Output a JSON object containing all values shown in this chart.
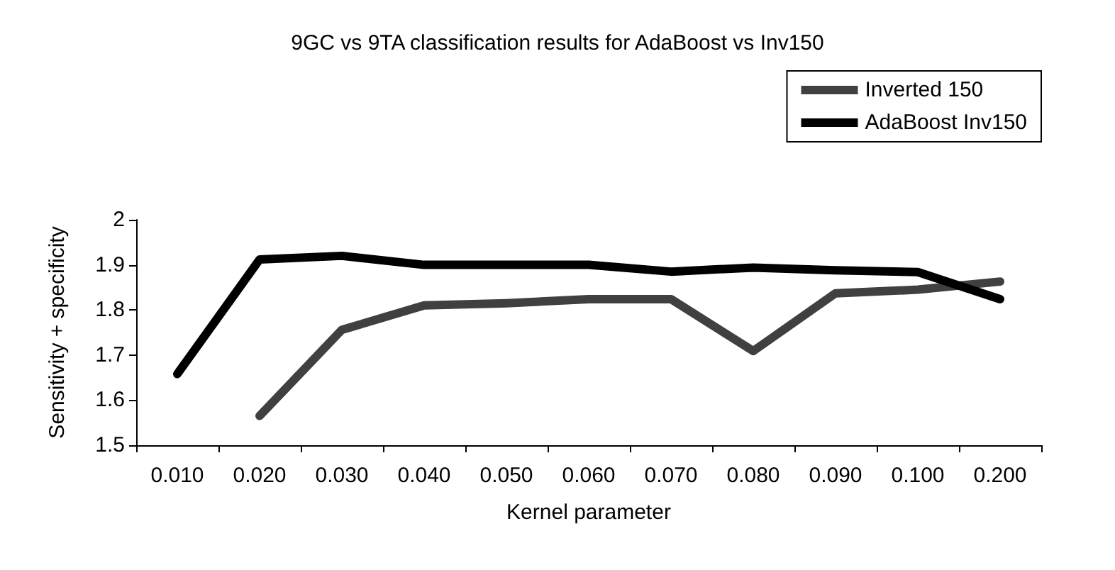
{
  "chart_data": {
    "type": "line",
    "title": "9GC vs 9TA classification results for AdaBoost vs Inv150",
    "xlabel": "Kernel parameter",
    "ylabel": "Sensitivity + specificity",
    "categories": [
      "0.010",
      "0.020",
      "0.030",
      "0.040",
      "0.050",
      "0.060",
      "0.070",
      "0.080",
      "0.090",
      "0.100",
      "0.200"
    ],
    "series": [
      {
        "name": "Inverted 150",
        "color": "#404040",
        "values": [
          null,
          1.565,
          1.756,
          1.81,
          1.815,
          1.824,
          1.824,
          1.709,
          1.837,
          1.845,
          1.863
        ]
      },
      {
        "name": "AdaBoost Inv150",
        "color": "#000000",
        "values": [
          1.658,
          1.912,
          1.92,
          1.9,
          1.9,
          1.9,
          1.885,
          1.894,
          1.888,
          1.884,
          1.824
        ]
      }
    ],
    "ylim": [
      1.5,
      2
    ],
    "yticks": [
      1.5,
      1.6,
      1.7,
      1.8,
      1.9,
      2
    ],
    "grid": false,
    "legend": "top right",
    "marker": "none",
    "line_style": "solid"
  }
}
